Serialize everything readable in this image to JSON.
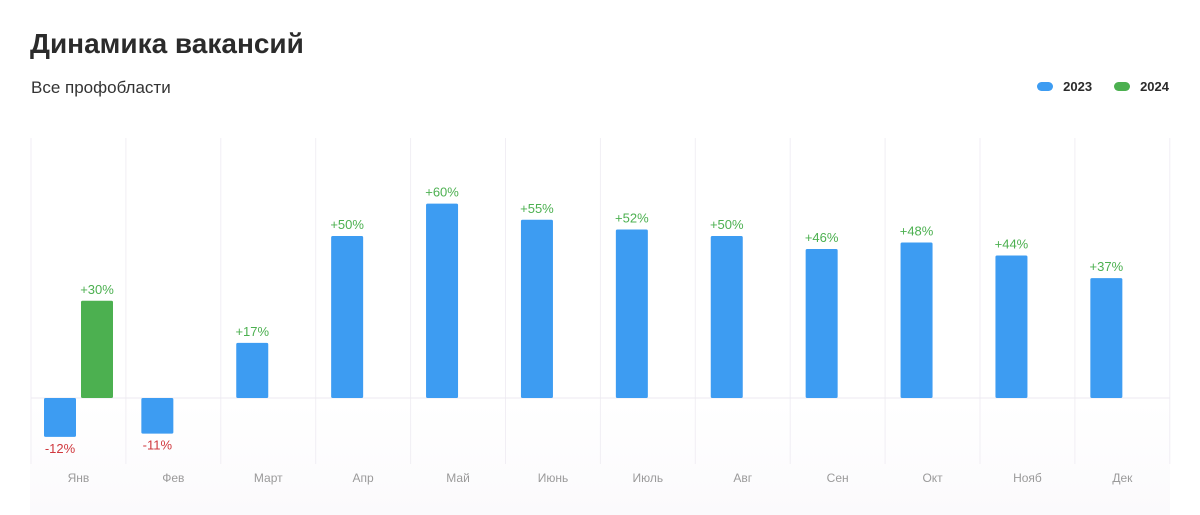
{
  "header": {
    "title": "Динамика вакансий",
    "subtitle": "Все профобласти"
  },
  "colors": {
    "series_2023": "#3d9cf2",
    "series_2024": "#4cb050",
    "positive_label": "#4cb050",
    "negative_label": "#d0383e"
  },
  "chart_data": {
    "type": "bar",
    "title": "Динамика вакансий",
    "subtitle": "Все профобласти",
    "categories": [
      "Янв",
      "Фев",
      "Март",
      "Апр",
      "Май",
      "Июнь",
      "Июль",
      "Авг",
      "Сен",
      "Окт",
      "Нояб",
      "Дек"
    ],
    "series": [
      {
        "name": "2023",
        "values": [
          -12,
          -11,
          17,
          50,
          60,
          55,
          52,
          50,
          46,
          48,
          44,
          37
        ],
        "labels": [
          "-12%",
          "-11%",
          "+17%",
          "+50%",
          "+60%",
          "+55%",
          "+52%",
          "+50%",
          "+46%",
          "+48%",
          "+44%",
          "+37%"
        ]
      },
      {
        "name": "2024",
        "values": [
          30,
          null,
          null,
          null,
          null,
          null,
          null,
          null,
          null,
          null,
          null,
          null
        ],
        "labels": [
          "+30%",
          "",
          "",
          "",
          "",
          "",
          "",
          "",
          "",
          "",
          "",
          ""
        ]
      }
    ],
    "unit": "%",
    "grid": true,
    "legend": "top-right"
  }
}
